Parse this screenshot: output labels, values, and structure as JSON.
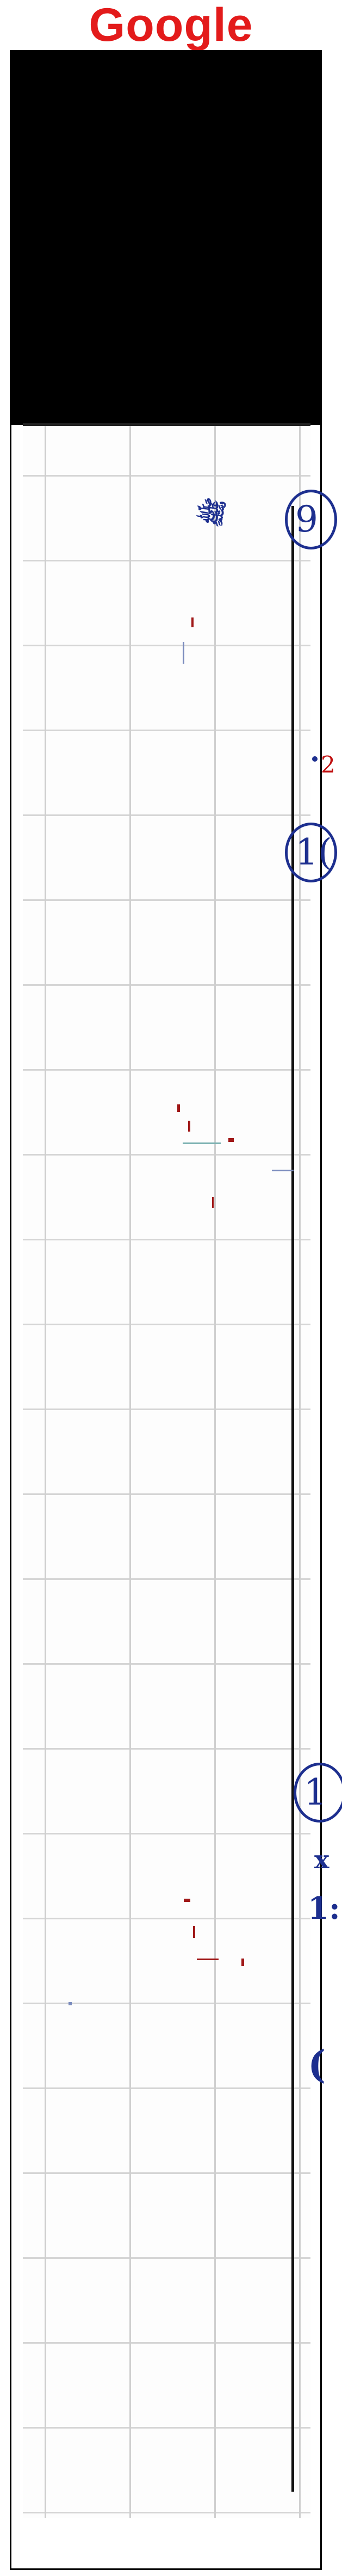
{
  "header": {
    "brand": "Google"
  },
  "document": {
    "marks": {
      "top_scribble": "ﷺ",
      "circle_1": "9",
      "circle_2": "1(",
      "circle_3": "1",
      "right_fragment_1": "2",
      "right_fragment_2": "1:",
      "right_fragment_3": "("
    },
    "colors": {
      "ink": "#1d2f8f",
      "brand": "#e31b1b",
      "red_note": "#c01010"
    }
  }
}
